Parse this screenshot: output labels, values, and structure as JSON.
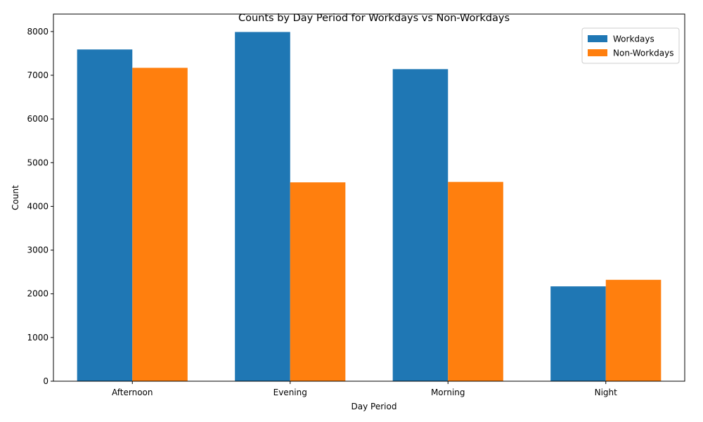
{
  "chart_data": {
    "type": "bar",
    "title": "Counts by Day Period for Workdays vs Non-Workdays",
    "xlabel": "Day Period",
    "ylabel": "Count",
    "categories": [
      "Afternoon",
      "Evening",
      "Morning",
      "Night"
    ],
    "series": [
      {
        "name": "Workdays",
        "color": "#1f77b4",
        "values": [
          7590,
          7990,
          7140,
          2170
        ]
      },
      {
        "name": "Non-Workdays",
        "color": "#ff7f0e",
        "values": [
          7170,
          4550,
          4560,
          2320
        ]
      }
    ],
    "ylim": [
      0,
      8400
    ],
    "yticks": [
      0,
      1000,
      2000,
      3000,
      4000,
      5000,
      6000,
      7000,
      8000
    ],
    "grid": false,
    "legend": "top-right"
  }
}
